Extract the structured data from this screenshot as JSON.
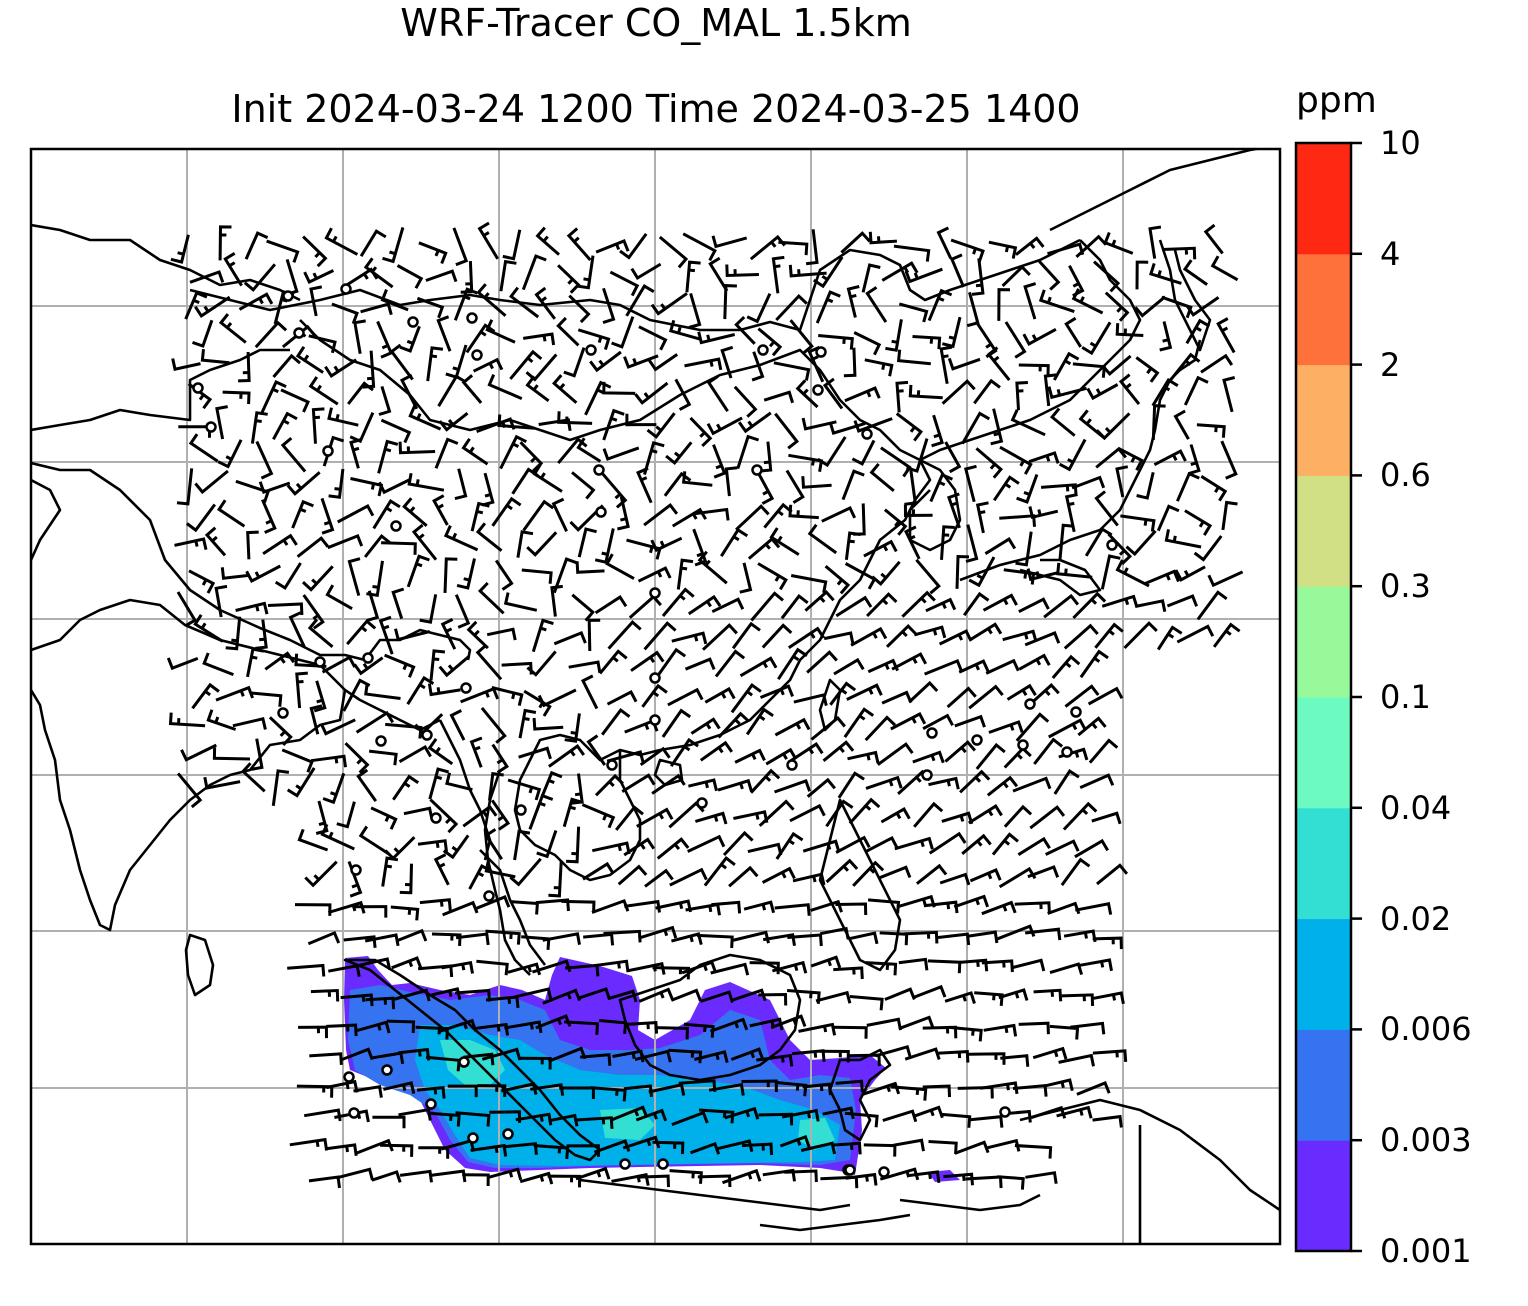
{
  "title": {
    "line1": "WRF-Tracer CO_MAL 1.5km",
    "line2": "Init 2024-03-24 1200 Time 2024-03-25 1400"
  },
  "colorbar": {
    "unit": "ppm",
    "ticks": [
      "0.001",
      "0.003",
      "0.006",
      "0.02",
      "0.04",
      "0.1",
      "0.3",
      "0.6",
      "2",
      "4",
      "10"
    ],
    "colors": [
      "#6a2bff",
      "#3573f0",
      "#00b0ea",
      "#33dfd2",
      "#6cfac0",
      "#98f99a",
      "#d1e085",
      "#fdb063",
      "#fe713b",
      "#fe2813"
    ]
  },
  "map": {
    "grid": "on",
    "layers": [
      "coastlines",
      "country-borders",
      "wind-barbs",
      "calm-wind-circles",
      "tracer-concentration-fill"
    ]
  }
}
